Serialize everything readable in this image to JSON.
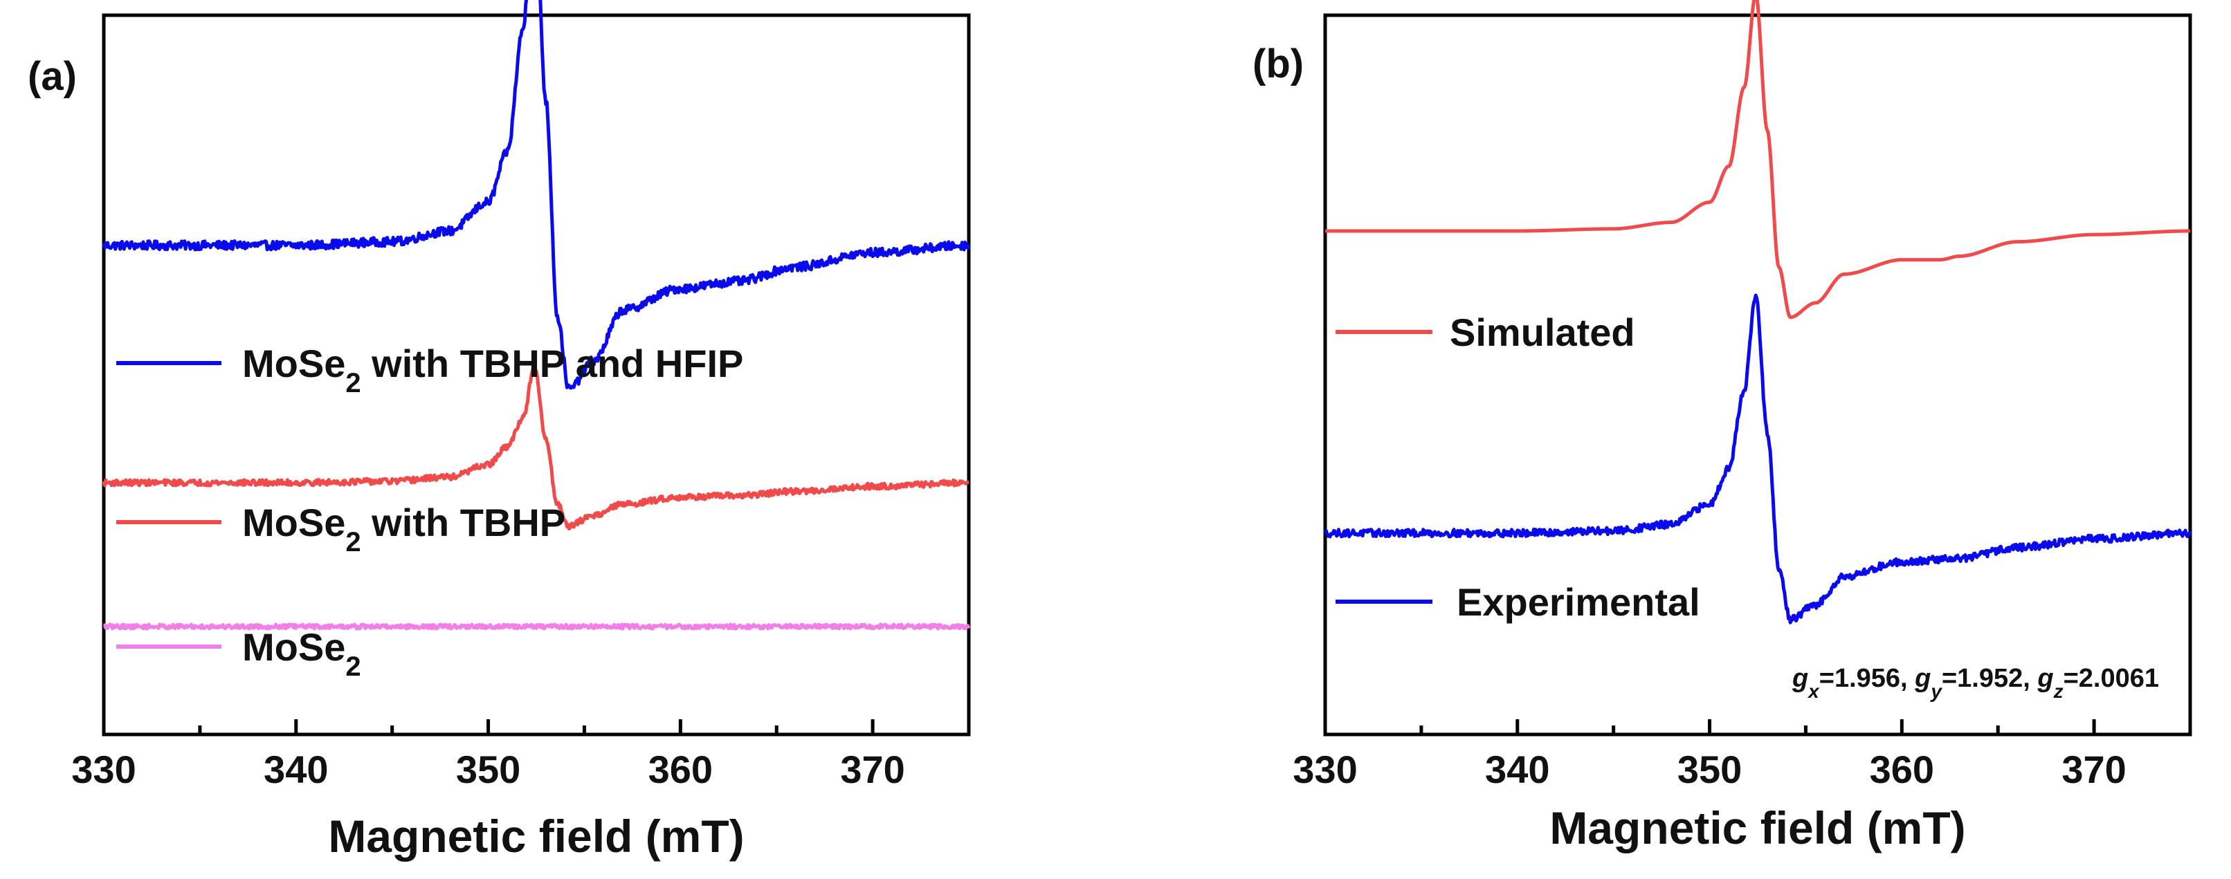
{
  "figure": {
    "panels": [
      {
        "label": "(a)",
        "chart_data": {
          "type": "line",
          "xlabel": "Magnetic field (mT)",
          "ylabel": "",
          "xlim": [
            330,
            375
          ],
          "xticks": [
            330,
            340,
            350,
            360,
            370
          ],
          "grid": false,
          "legend_position": "left, inline below each trace",
          "series": [
            {
              "name": "MoSe2 with TBHP and HFIP",
              "name_main": "MoSe",
              "name_sub": "2",
              "name_rest": " with TBHP and HFIP",
              "color": "#0a0aee",
              "baseline": 0.68,
              "peak_up": 0.5,
              "peak_down": 0.2,
              "noise": 0.006,
              "x": [
                330,
                340,
                345,
                348,
                350,
                351,
                351.8,
                352.4,
                353.0,
                353.6,
                354.2,
                355.5,
                357,
                360,
                363,
                366,
                370,
                375
              ],
              "y": [
                0,
                0,
                0.005,
                0.02,
                0.06,
                0.13,
                0.3,
                0.5,
                0.2,
                -0.1,
                -0.2,
                -0.16,
                -0.09,
                -0.06,
                -0.05,
                -0.03,
                -0.01,
                0
              ]
            },
            {
              "name": "MoSe2 with TBHP",
              "name_main": "MoSe",
              "name_sub": "2",
              "name_rest": " with TBHP",
              "color": "#f04a4a",
              "baseline": 0.35,
              "noise": 0.004,
              "x": [
                330,
                340,
                345,
                348,
                350,
                351,
                351.8,
                352.4,
                353.0,
                353.6,
                354.2,
                355.5,
                357,
                360,
                363,
                366,
                370,
                375
              ],
              "y": [
                0,
                0,
                0.002,
                0.008,
                0.025,
                0.05,
                0.09,
                0.16,
                0.06,
                -0.03,
                -0.06,
                -0.045,
                -0.03,
                -0.02,
                -0.018,
                -0.012,
                -0.005,
                0
              ]
            },
            {
              "name": "MoSe2",
              "name_main": "MoSe",
              "name_sub": "2",
              "name_rest": "",
              "color": "#f27ee8",
              "baseline": 0.15,
              "noise": 0.003,
              "x": [
                330,
                375
              ],
              "y": [
                0,
                0
              ]
            }
          ]
        }
      },
      {
        "label": "(b)",
        "chart_data": {
          "type": "line",
          "xlabel": "Magnetic field (mT)",
          "ylabel": "",
          "xlim": [
            330,
            375
          ],
          "xticks": [
            330,
            340,
            350,
            360,
            370
          ],
          "grid": false,
          "legend_position": "left, inline below each trace",
          "annotation": "gx=1.956, gy=1.952, gz=2.0061",
          "annotation_parts": [
            {
              "main": "g",
              "sub": "x",
              "rest": "=1.956, "
            },
            {
              "main": "g",
              "sub": "y",
              "rest": "=1.952, "
            },
            {
              "main": "g",
              "sub": "z",
              "rest": "=2.0061"
            }
          ],
          "series": [
            {
              "name": "Simulated",
              "color": "#f04a4a",
              "baseline": 0.7,
              "noise": 0.0,
              "x": [
                330,
                340,
                345,
                348,
                350,
                351,
                351.8,
                352.4,
                353.0,
                353.6,
                354.2,
                355.5,
                357,
                360,
                362,
                363,
                366,
                370,
                375
              ],
              "y": [
                0,
                0,
                0.003,
                0.012,
                0.04,
                0.09,
                0.2,
                0.33,
                0.14,
                -0.05,
                -0.12,
                -0.1,
                -0.06,
                -0.04,
                -0.04,
                -0.035,
                -0.015,
                -0.005,
                0
              ]
            },
            {
              "name": "Experimental",
              "color": "#0a0aee",
              "baseline": 0.28,
              "noise": 0.005,
              "x": [
                330,
                340,
                345,
                348,
                350,
                351,
                351.8,
                352.4,
                353.0,
                353.6,
                354.2,
                355.5,
                357,
                360,
                363,
                366,
                370,
                375
              ],
              "y": [
                0,
                0,
                0.003,
                0.012,
                0.04,
                0.09,
                0.2,
                0.33,
                0.14,
                -0.05,
                -0.12,
                -0.1,
                -0.06,
                -0.04,
                -0.035,
                -0.02,
                -0.008,
                0
              ]
            }
          ]
        }
      }
    ]
  }
}
